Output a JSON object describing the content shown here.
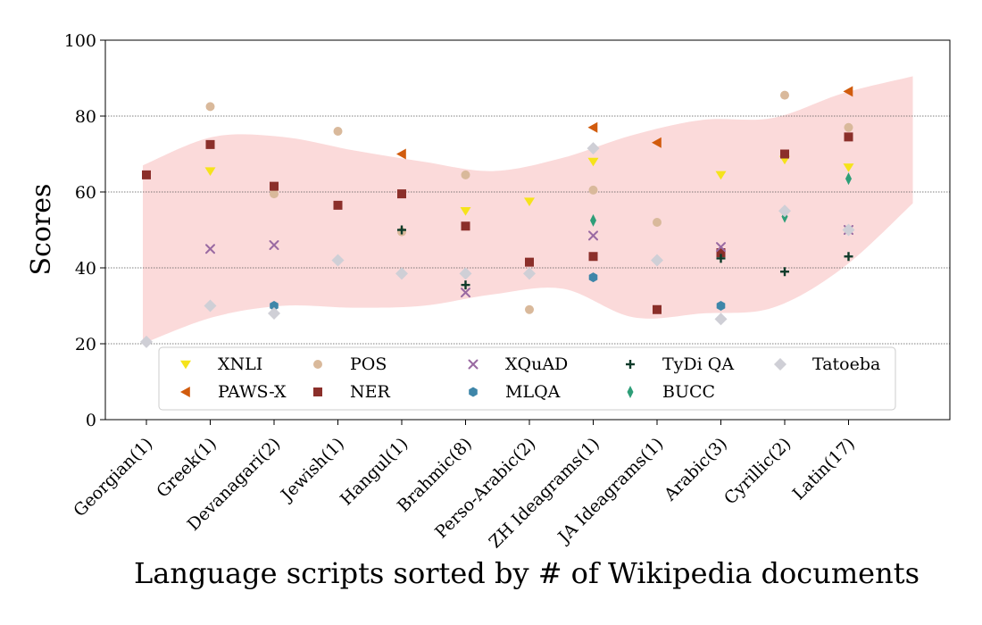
{
  "chart_data": {
    "type": "scatter",
    "title": "",
    "xlabel": "Language scripts sorted by # of Wikipedia documents",
    "ylabel": "Scores",
    "ylim": [
      0,
      100
    ],
    "yticks": [
      0,
      20,
      40,
      60,
      80,
      100
    ],
    "grid": "horizontal dotted at 40, 60, 80",
    "legend_position": "bottom-center",
    "categories": [
      "Georgian(1)",
      "Greek(1)",
      "Devanagari(2)",
      "Jewish(1)",
      "Hangul(1)",
      "Brahmic(8)",
      "Perso-Arabic(2)",
      "ZH Ideagrams(1)",
      "JA Ideagrams(1)",
      "Arabic(3)",
      "Cyrillic(2)",
      "Latin(17)"
    ],
    "band": {
      "description": "shaded score range",
      "color": "#f4a3a3",
      "upper": [
        67,
        74.5,
        74.5,
        71,
        68,
        65.5,
        69,
        75,
        79,
        79.5,
        86,
        90.5
      ],
      "lower": [
        20,
        27,
        30,
        29.5,
        30,
        33,
        34.5,
        27,
        28,
        29.5,
        40,
        57
      ]
    },
    "series": [
      {
        "name": "XNLI",
        "marker": "triangle-down",
        "color": "#f5e31b",
        "values": [
          null,
          65.5,
          null,
          null,
          null,
          55,
          57.5,
          68,
          null,
          64.5,
          68.5,
          66.5
        ]
      },
      {
        "name": "PAWS-X",
        "marker": "triangle-left",
        "color": "#d15b0d",
        "values": [
          null,
          null,
          null,
          null,
          70,
          null,
          null,
          77,
          73,
          null,
          null,
          86.5
        ]
      },
      {
        "name": "POS",
        "marker": "circle",
        "color": "#d9b99b",
        "values": [
          null,
          82.5,
          59.5,
          76,
          49.5,
          64.5,
          29,
          60.5,
          52,
          null,
          85.5,
          77
        ]
      },
      {
        "name": "NER",
        "marker": "square",
        "color": "#8b2f2a",
        "values": [
          64.5,
          72.5,
          61.5,
          56.5,
          59.5,
          51,
          41.5,
          43,
          29,
          44,
          70,
          74.5
        ]
      },
      {
        "name": "XQuAD",
        "marker": "x",
        "color": "#9a6aa2",
        "values": [
          null,
          45,
          46,
          null,
          null,
          33.5,
          null,
          48.5,
          null,
          45.5,
          null,
          50
        ]
      },
      {
        "name": "MLQA",
        "marker": "hexagon",
        "color": "#3e86a9",
        "values": [
          null,
          null,
          30,
          null,
          null,
          null,
          null,
          37.5,
          null,
          30,
          null,
          null
        ]
      },
      {
        "name": "TyDi QA",
        "marker": "plus",
        "color": "#0f3b2a",
        "values": [
          null,
          null,
          null,
          null,
          50,
          35.5,
          null,
          null,
          null,
          42.5,
          39,
          43
        ]
      },
      {
        "name": "BUCC",
        "marker": "thin-diamond",
        "color": "#2e9e78",
        "values": [
          null,
          null,
          null,
          null,
          null,
          null,
          null,
          52.5,
          null,
          null,
          53.5,
          63.5
        ]
      },
      {
        "name": "Tatoeba",
        "marker": "diamond",
        "color": "#cfcfd6",
        "values": [
          20.5,
          30,
          28,
          42,
          38.5,
          38.5,
          38.5,
          71.5,
          42,
          26.5,
          55,
          50
        ]
      }
    ]
  }
}
